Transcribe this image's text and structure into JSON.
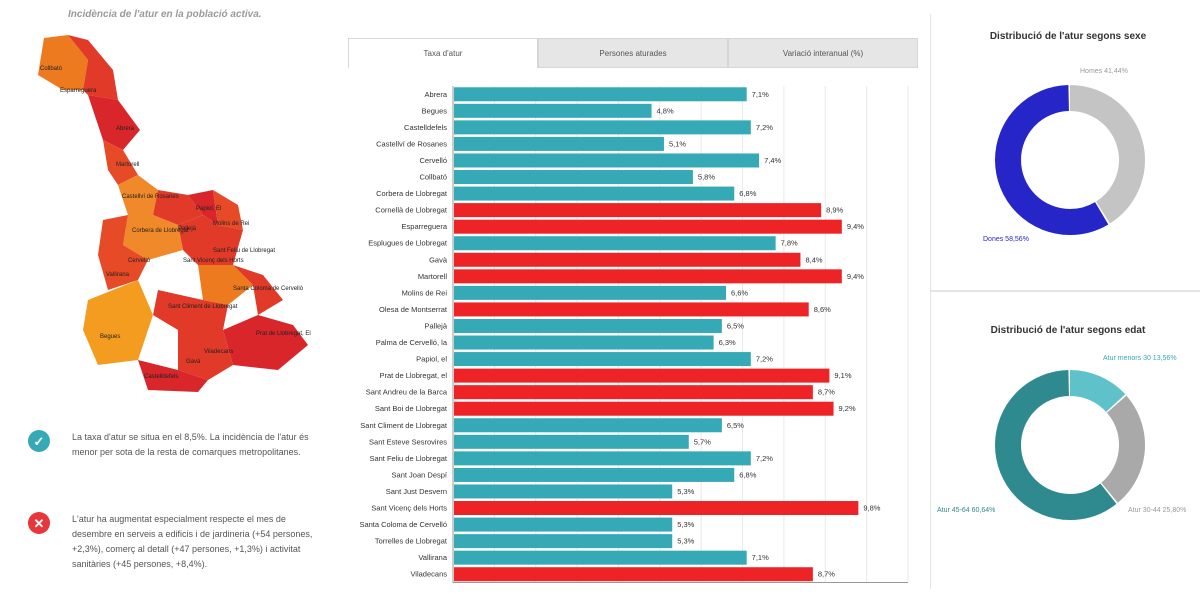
{
  "subtitle": "Incidència de l'atur en la població activa.",
  "map": {
    "labels": [
      "Collbató",
      "Esparreguera",
      "Abrera",
      "Martorell",
      "Castellví de Rosanes",
      "Papiol, El",
      "Molins de Rei",
      "Pallejà",
      "Sant Feliu de Llobregat",
      "Corbera de Llobregat",
      "Cervelló",
      "Sant Vicenç dels Horts",
      "Vallirana",
      "Santa Coloma de Cervelló",
      "Sant Climent de Llobregat",
      "Begues",
      "Viladecans",
      "Gavà",
      "Castelldefels",
      "Prat de Llobregat, El"
    ]
  },
  "notes": [
    {
      "icon": "check-icon",
      "text": "La taxa d'atur se situa en el 8,5%. La incidència de l'atur és menor per sota de la resta de comarques metropolitanes.",
      "color": "#36a9b6"
    },
    {
      "icon": "cross-icon",
      "text": "L'atur ha augmentat especialment respecte el mes de desembre en serveis a edificis i de jardineria (+54 persones, +2,3%), comerç al detall (+47 persones, +1,3%) i activitat sanitàries (+45 persones, +8,4%).",
      "color": "#e8373b"
    }
  ],
  "tabs": [
    "Taxa d'atur",
    "Persones aturades",
    "Variació interanual (%)"
  ],
  "colors": {
    "teal": "#36a9b6",
    "red": "#ed2326",
    "blue": "#2626c8",
    "grey": "#c4c4c4",
    "dark_teal": "#2f8a8f",
    "light_teal": "#5fc2ca",
    "mid_grey": "#a9a9a9"
  },
  "chart_data": {
    "type": "bar",
    "orientation": "horizontal",
    "categories": [
      "Abrera",
      "Begues",
      "Castelldefels",
      "Castellví de Rosanes",
      "Cervelló",
      "Collbató",
      "Corbera de Llobregat",
      "Cornellà de Llobregat",
      "Esparreguera",
      "Esplugues de Llobregat",
      "Gavà",
      "Martorell",
      "Molins de Rei",
      "Olesa de Montserrat",
      "Pallejà",
      "Palma de Cervelló, la",
      "Papiol, el",
      "Prat de Llobregat, el",
      "Sant Andreu de la Barca",
      "Sant Boi de Llobregat",
      "Sant Climent de Llobregat",
      "Sant Esteve Sesrovires",
      "Sant Feliu de Llobregat",
      "Sant Joan Despí",
      "Sant Just Desvern",
      "Sant Vicenç dels Horts",
      "Santa Coloma de Cervelló",
      "Torrelles de Llobregat",
      "Vallirana",
      "Viladecans"
    ],
    "values": [
      7.1,
      4.8,
      7.2,
      5.1,
      7.4,
      5.8,
      6.8,
      8.9,
      9.4,
      7.8,
      8.4,
      9.4,
      6.6,
      8.6,
      6.5,
      6.3,
      7.2,
      9.1,
      8.7,
      9.2,
      6.5,
      5.7,
      7.2,
      6.8,
      5.3,
      9.8,
      5.3,
      5.3,
      7.1,
      8.7
    ],
    "labels": [
      "7,1%",
      "4,8%",
      "7,2%",
      "5,1%",
      "7,4%",
      "5,8%",
      "6,8%",
      "8,9%",
      "9,4%",
      "7,8%",
      "8,4%",
      "9,4%",
      "6,6%",
      "8,6%",
      "6,5%",
      "6,3%",
      "7,2%",
      "9,1%",
      "8,7%",
      "9,2%",
      "6,5%",
      "5,7%",
      "7,2%",
      "6,8%",
      "5,3%",
      "9,8%",
      "5,3%",
      "5,3%",
      "7,1%",
      "8,7%"
    ],
    "highlight": [
      false,
      false,
      false,
      false,
      false,
      false,
      false,
      true,
      true,
      false,
      true,
      true,
      false,
      true,
      false,
      false,
      false,
      true,
      true,
      true,
      false,
      false,
      false,
      false,
      false,
      true,
      false,
      false,
      false,
      true
    ],
    "xlim": [
      0,
      11
    ],
    "grid": true
  },
  "donut_sexe": {
    "title": "Distribució de l'atur segons sexe",
    "slices": [
      {
        "label": "Homes 41,44%",
        "value": 41.44,
        "color": "#c4c4c4"
      },
      {
        "label": "Dones 58,56%",
        "value": 58.56,
        "color": "#2626c8"
      }
    ]
  },
  "donut_edat": {
    "title": "Distribució de l'atur segons edat",
    "slices": [
      {
        "label": "Atur menors 30 13,56%",
        "value": 13.56,
        "color": "#5fc2ca"
      },
      {
        "label": "Atur 30-44 25,80%",
        "value": 25.8,
        "color": "#a9a9a9"
      },
      {
        "label": "Atur 45-64 60,64%",
        "value": 60.64,
        "color": "#2f8a8f"
      }
    ]
  }
}
